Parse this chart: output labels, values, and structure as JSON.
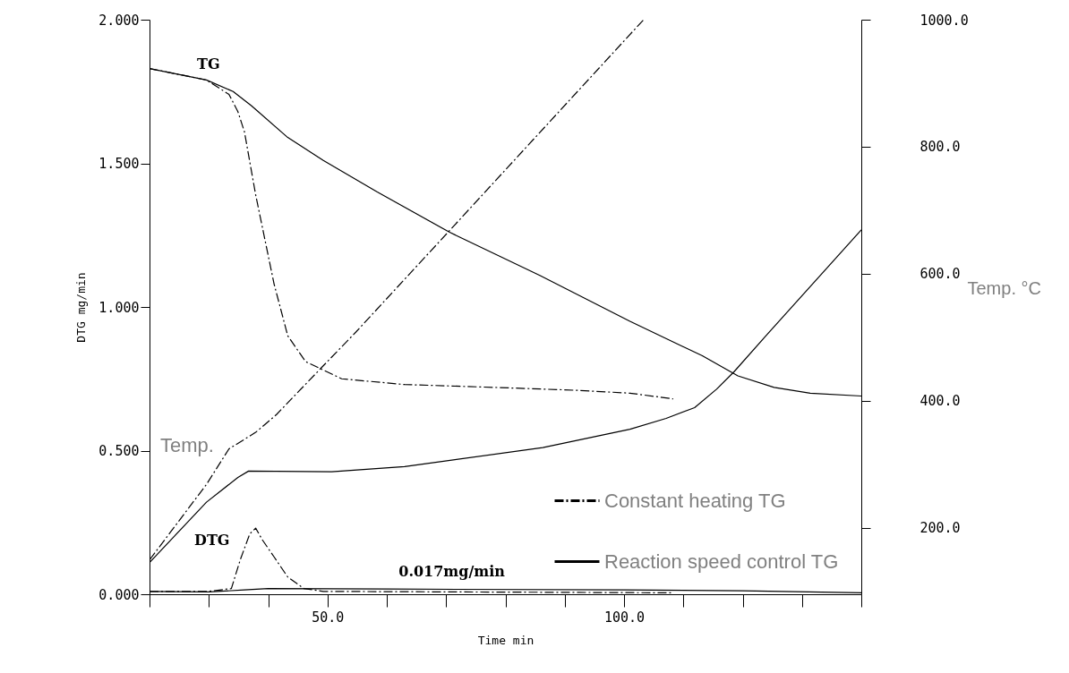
{
  "chart_data": {
    "type": "line",
    "xlabel": "Time min",
    "ylabel": "DTG mg/min",
    "y2label": "Temp. °C",
    "xlim": [
      20,
      140
    ],
    "xticks": [
      {
        "value": 20,
        "label": null
      },
      {
        "value": 30,
        "label": null
      },
      {
        "value": 40,
        "label": null
      },
      {
        "value": 50,
        "label": "50.0"
      },
      {
        "value": 60,
        "label": null
      },
      {
        "value": 70,
        "label": null
      },
      {
        "value": 80,
        "label": null
      },
      {
        "value": 90,
        "label": null
      },
      {
        "value": 100,
        "label": "100.0"
      },
      {
        "value": 110,
        "label": null
      },
      {
        "value": 120,
        "label": null
      },
      {
        "value": 130,
        "label": null
      },
      {
        "value": 140,
        "label": null
      }
    ],
    "ylim": [
      0,
      2
    ],
    "yticks": [
      {
        "value": 0,
        "label": "0.000"
      },
      {
        "value": 0.5,
        "label": "0.500"
      },
      {
        "value": 1,
        "label": "1.000"
      },
      {
        "value": 1.5,
        "label": "1.500"
      },
      {
        "value": 2,
        "label": "2.000"
      }
    ],
    "y2lim": [
      95,
      1000
    ],
    "y2ticks": [
      {
        "value": 200,
        "label": "200.0"
      },
      {
        "value": 400,
        "label": "400.0"
      },
      {
        "value": 600,
        "label": "600.0"
      },
      {
        "value": 800,
        "label": "800.0"
      },
      {
        "value": 1000,
        "label": "1000.0"
      }
    ],
    "grid": false,
    "legend": "bottom right",
    "series": [
      {
        "name": "Constant heating TG",
        "color": "#000000",
        "line_style": "dashed",
        "x": [
          20,
          29.6,
          33.4,
          34.9,
          36,
          37.9,
          39.5,
          41,
          43.3,
          46.3,
          52.4,
          63,
          78.2,
          91.9,
          101,
          108.3
        ],
        "values": [
          1.83,
          1.79,
          1.74,
          1.68,
          1.61,
          1.39,
          1.23,
          1.08,
          0.9,
          0.81,
          0.75,
          0.73,
          0.72,
          0.71,
          0.7,
          0.68
        ]
      },
      {
        "name": "Reaction speed control TG",
        "color": "#000000",
        "line_style": "solid",
        "x": [
          20,
          29.6,
          34.1,
          37.2,
          43.3,
          49.3,
          58.4,
          70.6,
          85.8,
          101,
          113.2,
          119.2,
          125.3,
          131.4,
          140
        ],
        "values": [
          1.83,
          1.79,
          1.75,
          1.7,
          1.59,
          1.51,
          1.4,
          1.26,
          1.11,
          0.95,
          0.83,
          0.76,
          0.72,
          0.7,
          0.69
        ]
      },
      {
        "color": "#000000",
        "line_style": "dashed",
        "axis": "y2",
        "x": [
          20,
          29.6,
          33.4,
          37.9,
          41.4,
          49,
          54.8,
          70.6,
          103.3
        ],
        "values": [
          149,
          268,
          324,
          350,
          378,
          452,
          508,
          668,
          1000
        ]
      },
      {
        "color": "#000000",
        "line_style": "solid",
        "axis": "y2",
        "x": [
          20,
          29.6,
          34.9,
          36.7,
          50.7,
          63,
          86.3,
          101,
          107.1,
          111.9,
          115.6,
          118.6,
          124.1,
          140
        ],
        "values": [
          145,
          240,
          279,
          289,
          288,
          296,
          326,
          355,
          372,
          389,
          418,
          446,
          504,
          669
        ]
      },
      {
        "color": "#000000",
        "line_style": "dashed",
        "x": [
          20,
          30,
          33.8,
          35.3,
          36.9,
          37.9,
          39,
          41,
          43.3,
          46,
          49.3,
          108.3
        ],
        "values": [
          0.01,
          0.01,
          0.02,
          0.12,
          0.21,
          0.23,
          0.19,
          0.13,
          0.06,
          0.02,
          0.01,
          0.005
        ]
      },
      {
        "color": "#000000",
        "line_style": "solid",
        "x": [
          20,
          30,
          36,
          40,
          60,
          100,
          120,
          140
        ],
        "values": [
          0.01,
          0.008,
          0.015,
          0.02,
          0.018,
          0.015,
          0.012,
          0.005
        ]
      }
    ],
    "annotations": [
      "TG",
      "DTG",
      "Temp.",
      {
        "text": "0.017mg/min",
        "x": 62,
        "y": 0.017
      }
    ]
  }
}
